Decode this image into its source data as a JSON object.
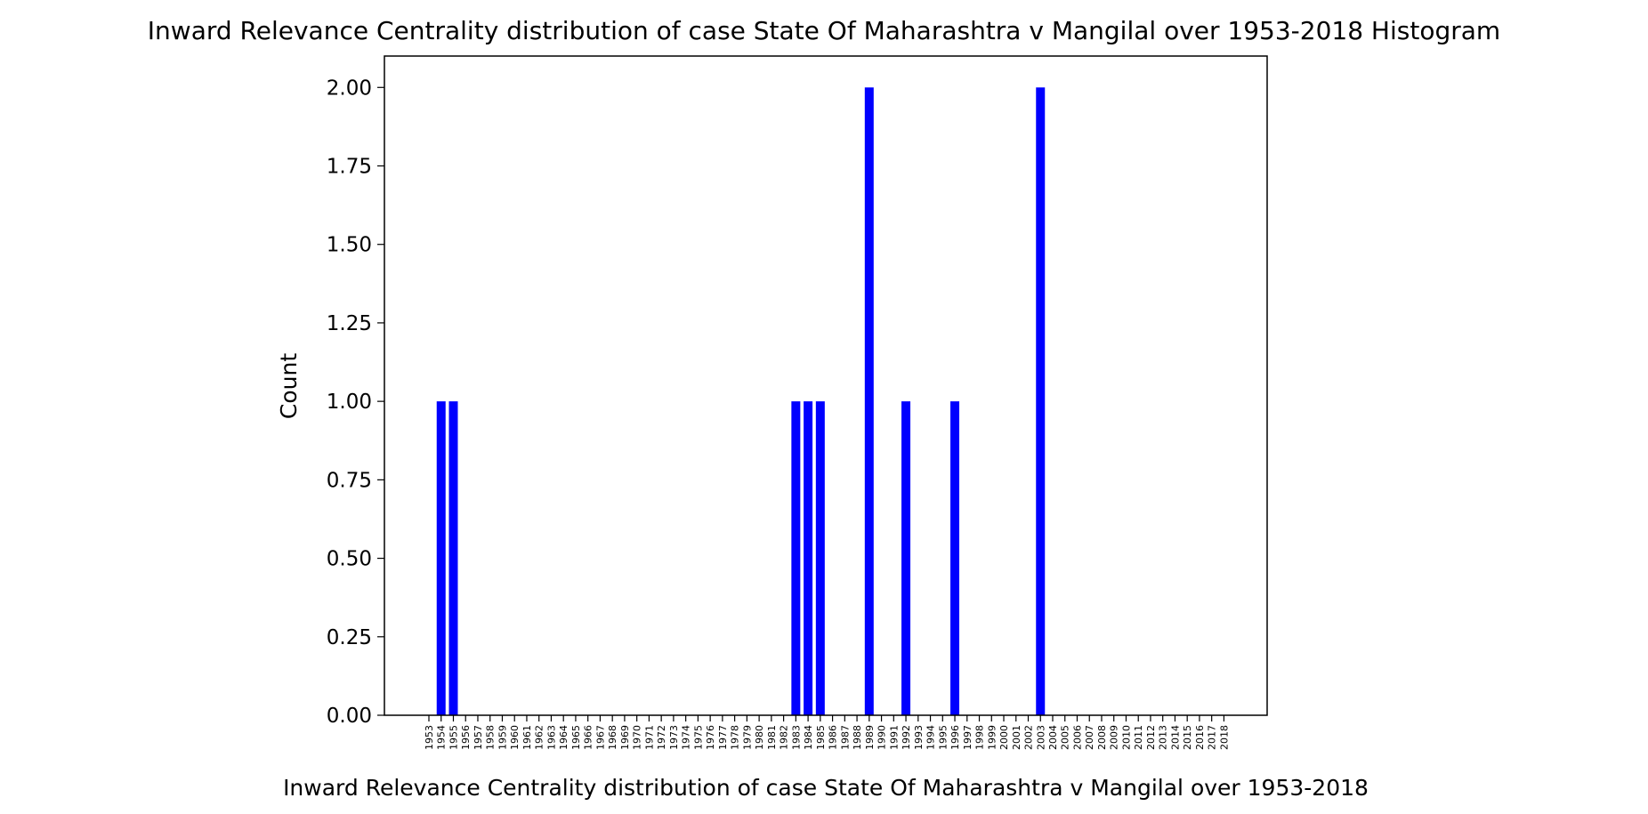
{
  "chart_data": {
    "type": "bar",
    "title": "Inward Relevance Centrality distribution of case State Of Maharashtra v Mangilal over 1953-2018 Histogram",
    "xlabel": "Inward Relevance Centrality distribution of case State Of Maharashtra v Mangilal over 1953-2018",
    "ylabel": "Count",
    "ylim": [
      0,
      2.1
    ],
    "yticks": [
      "0.00",
      "0.25",
      "0.50",
      "0.75",
      "1.00",
      "1.25",
      "1.50",
      "1.75",
      "2.00"
    ],
    "categories": [
      "1953",
      "1954",
      "1955",
      "1956",
      "1957",
      "1958",
      "1959",
      "1960",
      "1961",
      "1962",
      "1963",
      "1964",
      "1965",
      "1966",
      "1967",
      "1968",
      "1969",
      "1970",
      "1971",
      "1972",
      "1973",
      "1974",
      "1975",
      "1976",
      "1977",
      "1978",
      "1979",
      "1980",
      "1981",
      "1982",
      "1983",
      "1984",
      "1985",
      "1986",
      "1987",
      "1988",
      "1989",
      "1990",
      "1991",
      "1992",
      "1993",
      "1994",
      "1995",
      "1996",
      "1997",
      "1998",
      "1999",
      "2000",
      "2001",
      "2002",
      "2003",
      "2004",
      "2005",
      "2006",
      "2007",
      "2008",
      "2009",
      "2010",
      "2011",
      "2012",
      "2013",
      "2014",
      "2015",
      "2016",
      "2017",
      "2018"
    ],
    "values": [
      0,
      1,
      1,
      0,
      0,
      0,
      0,
      0,
      0,
      0,
      0,
      0,
      0,
      0,
      0,
      0,
      0,
      0,
      0,
      0,
      0,
      0,
      0,
      0,
      0,
      0,
      0,
      0,
      0,
      0,
      1,
      1,
      1,
      0,
      0,
      0,
      2,
      0,
      0,
      1,
      0,
      0,
      0,
      1,
      0,
      0,
      0,
      0,
      0,
      0,
      2,
      0,
      0,
      0,
      0,
      0,
      0,
      0,
      0,
      0,
      0,
      0,
      0,
      0,
      0,
      0
    ],
    "bar_color": "#0000ff",
    "grid": false,
    "legend": false
  }
}
